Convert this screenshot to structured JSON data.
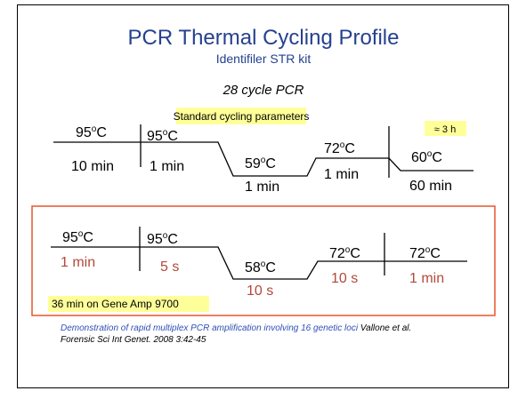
{
  "header": {
    "title": "PCR Thermal Cycling Profile",
    "subtitle": "Identifiler STR kit",
    "cycles": "28 cycle PCR"
  },
  "unit_sup": "o",
  "unit": "C",
  "standard": {
    "label": "Standard cycling parameters",
    "duration": "≈ 3 h",
    "steps": [
      {
        "temp": "95",
        "time": "10 min"
      },
      {
        "temp": "95",
        "time": "1 min"
      },
      {
        "temp": "59",
        "time": "1 min"
      },
      {
        "temp": "72",
        "time": "1 min"
      },
      {
        "temp": "60",
        "time": "60 min"
      }
    ]
  },
  "fast": {
    "note": "36 min on Gene Amp 9700",
    "steps": [
      {
        "temp": "95",
        "time": "1 min"
      },
      {
        "temp": "95",
        "time": "5 s"
      },
      {
        "temp": "58",
        "time": "10 s"
      },
      {
        "temp": "72",
        "time": "10 s"
      },
      {
        "temp": "72",
        "time": "1 min"
      }
    ]
  },
  "citation": {
    "title": "Demonstration of rapid multiplex PCR amplification involving 16 genetic loci",
    "authors": " Vallone et al.",
    "journal": "Forensic Sci Int Genet. 2008 3:42-45"
  }
}
